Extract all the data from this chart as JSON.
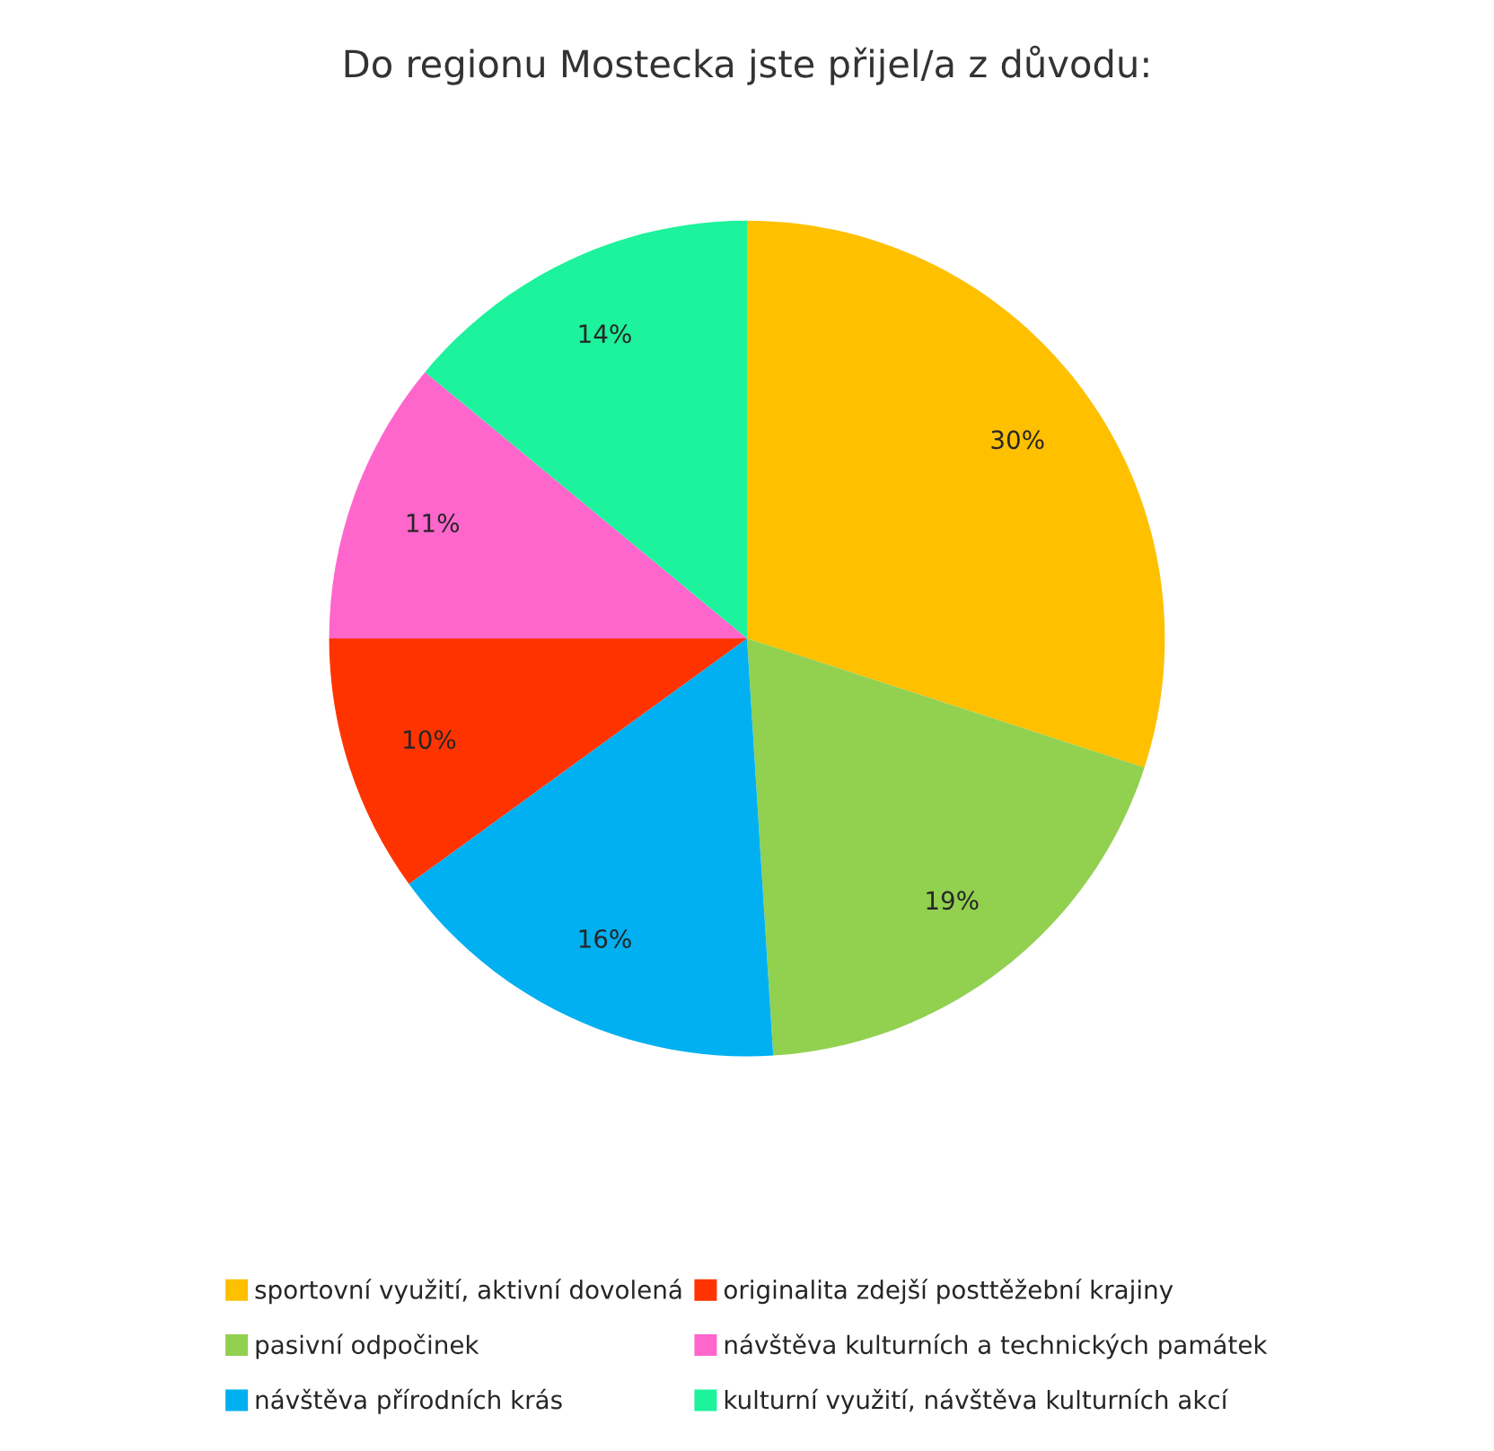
{
  "chart_data": {
    "type": "pie",
    "title": "Do regionu Mostecka jste přijel/a z důvodu:",
    "categories": [
      "sportovní využití, aktivní dovolená",
      "pasivní odpočinek",
      "návštěva přírodních krás",
      "originalita zdejší posttěžební krajiny",
      "návštěva kulturních a technických památek",
      "kulturní využití, návštěva kulturních akcí"
    ],
    "values": [
      30,
      19,
      16,
      10,
      11,
      14
    ],
    "value_labels": [
      "30%",
      "19%",
      "16%",
      "10%",
      "11%",
      "14%"
    ],
    "colors": [
      "#ffc000",
      "#92d050",
      "#00b0f0",
      "#ff3300",
      "#ff66cc",
      "#1df29c"
    ],
    "legend": "bottom"
  }
}
